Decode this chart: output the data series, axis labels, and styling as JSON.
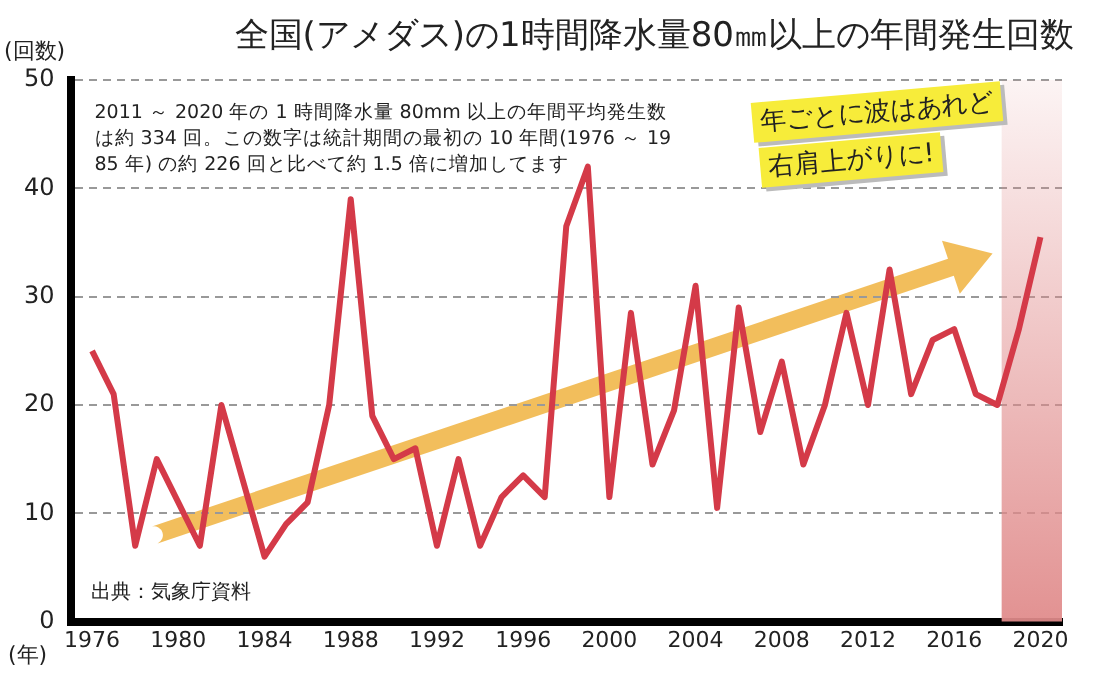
{
  "chart_data": {
    "type": "line",
    "title": "全国(アメダス)の1時間降水量80㎜以上の年間発生回数",
    "xlabel": "(年)",
    "ylabel": "(回数)",
    "x": [
      1976,
      1977,
      1978,
      1979,
      1980,
      1981,
      1982,
      1983,
      1984,
      1985,
      1986,
      1987,
      1988,
      1989,
      1990,
      1991,
      1992,
      1993,
      1994,
      1995,
      1996,
      1997,
      1998,
      1999,
      2000,
      2001,
      2002,
      2003,
      2004,
      2005,
      2006,
      2007,
      2008,
      2009,
      2010,
      2011,
      2012,
      2013,
      2014,
      2015,
      2016,
      2017,
      2018,
      2019,
      2020
    ],
    "series": [
      {
        "color": "#d43a48",
        "values": [
          25,
          21,
          7,
          15,
          11,
          7,
          20,
          13,
          6,
          9,
          11,
          20,
          39,
          19,
          15,
          16,
          7,
          15,
          7,
          11.5,
          13.5,
          11.5,
          36.5,
          42,
          11.5,
          28.5,
          14.5,
          19.5,
          31,
          10.5,
          29,
          17.5,
          24,
          14.5,
          20,
          28.5,
          20,
          32.5,
          21,
          26,
          27,
          21,
          20,
          27,
          35.5
        ]
      }
    ],
    "xlim": [
      1975,
      2021
    ],
    "xticks": [
      1976,
      1980,
      1984,
      1988,
      1992,
      1996,
      2000,
      2004,
      2008,
      2012,
      2016,
      2020
    ],
    "ylim": [
      0,
      50
    ],
    "yticks": [
      0,
      10,
      20,
      30,
      40,
      50
    ],
    "grid": "y",
    "legend": false,
    "marker": "none",
    "line_style": "solid",
    "bands": [
      {
        "axis": "x",
        "from": 2018.2,
        "to": 2021,
        "color": "#e08a8a"
      }
    ],
    "annotations": [
      "2011 ～ 2020 年の 1 時間降水量 80mm 以上の年間平均発生数は約 334 回。この数字は統計期間の最初の 10 年間(1976 ～ 1985 年) の約 226 回と比べて約 1.5 倍に増加してます",
      "年ごとに波はあれど",
      "右肩上がりに!",
      "出典：気象庁資料"
    ]
  }
}
